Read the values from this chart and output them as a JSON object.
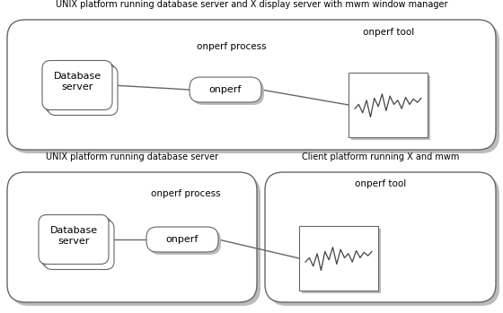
{
  "bg_color": "#ffffff",
  "shadow_color": "#bbbbbb",
  "box_fill": "#ffffff",
  "box_edge": "#666666",
  "line_color": "#666666",
  "text_color": "#000000",
  "top_title": "UNIX platform running database server and X display server with mwm window manager",
  "bottom_left_title": "UNIX platform running database server",
  "bottom_right_title": "Client platform running X and mwm",
  "label_onperf_process": "onperf process",
  "label_onperf": "onperf",
  "label_db_server": "Database\nserver",
  "label_onperf_tool": "onperf tool",
  "chart_wave": [
    0.45,
    0.55,
    0.35,
    0.65,
    0.25,
    0.7,
    0.5,
    0.8,
    0.4,
    0.75,
    0.55,
    0.65,
    0.45,
    0.72,
    0.55,
    0.68,
    0.6,
    0.7
  ]
}
